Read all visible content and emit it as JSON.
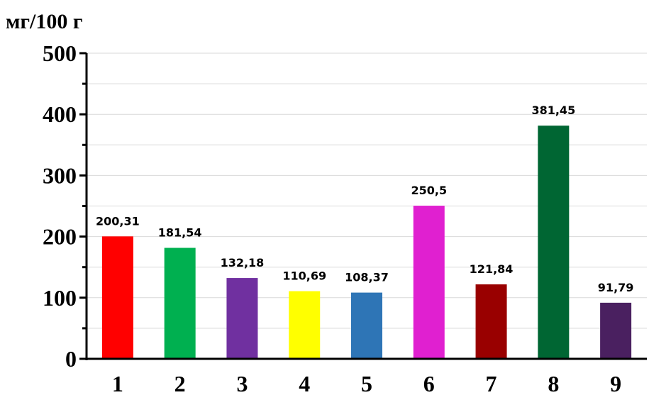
{
  "chart_data": {
    "type": "bar",
    "unit_label": "мг/100 г",
    "categories": [
      "1",
      "2",
      "3",
      "4",
      "5",
      "6",
      "7",
      "8",
      "9"
    ],
    "values": [
      200.31,
      181.54,
      132.18,
      110.69,
      108.37,
      250.5,
      121.84,
      381.45,
      91.79
    ],
    "value_labels": [
      "200,31",
      "181,54",
      "132,18",
      "110,69",
      "108,37",
      "250,5",
      "121,84",
      "381,45",
      "91,79"
    ],
    "bar_colors": [
      "#ff0000",
      "#00b050",
      "#7030a0",
      "#ffff00",
      "#2e75b6",
      "#e020d0",
      "#990000",
      "#006633",
      "#4a2060"
    ],
    "ylim": [
      0,
      500
    ],
    "yticks": [
      "0",
      "100",
      "200",
      "300",
      "400",
      "500"
    ],
    "grid": true,
    "legend": "none"
  }
}
